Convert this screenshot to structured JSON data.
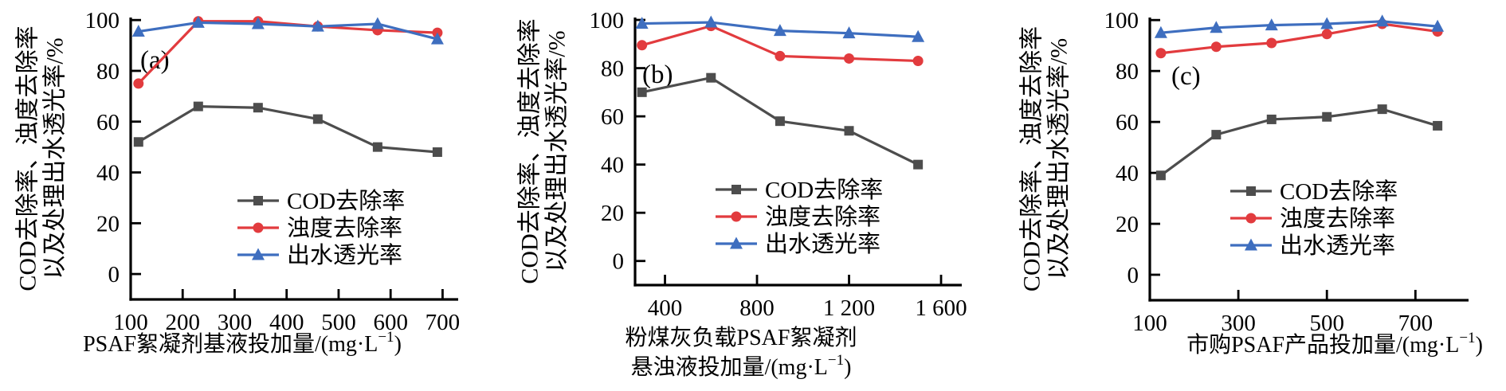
{
  "colors": {
    "cod": "#4d4d4d",
    "turbidity": "#e23b3e",
    "transmittance": "#3e6ebf",
    "axis": "#000000",
    "background": "#ffffff"
  },
  "y_axis": {
    "title_line1": "COD去除率、浊度去除率",
    "title_line2": "以及处理出水透光率/%",
    "tick_values": [
      0,
      20,
      40,
      60,
      80,
      100
    ],
    "tick_labels": [
      "0",
      "20",
      "40",
      "60",
      "80",
      "100"
    ],
    "min": -10,
    "max": 101
  },
  "legend_items": [
    {
      "key": "cod",
      "label": "COD去除率",
      "marker": "square"
    },
    {
      "key": "turbidity",
      "label": "浊度去除率",
      "marker": "circle"
    },
    {
      "key": "transmittance",
      "label": "出水透光率",
      "marker": "triangle"
    }
  ],
  "chart_data": [
    {
      "type": "line",
      "panel_label": "(a)",
      "x_title_lines": [
        "PSAF絮凝剂基液投加量/(mg·L⁻¹)"
      ],
      "x_min": 100,
      "x_max": 730,
      "x_ticks": [
        {
          "v": 100,
          "label": "100"
        },
        {
          "v": 200,
          "label": "200"
        },
        {
          "v": 300,
          "label": "300"
        },
        {
          "v": 400,
          "label": "400"
        },
        {
          "v": 500,
          "label": "500"
        },
        {
          "v": 600,
          "label": "600"
        },
        {
          "v": 700,
          "label": "700"
        }
      ],
      "x": [
        115,
        230,
        345,
        460,
        575,
        690
      ],
      "series": [
        {
          "key": "cod",
          "name": "COD去除率",
          "marker": "square",
          "values": [
            52,
            66,
            65.5,
            61,
            50,
            48
          ]
        },
        {
          "key": "turbidity",
          "name": "浊度去除率",
          "marker": "circle",
          "values": [
            75,
            99.5,
            99.5,
            97.5,
            96,
            95
          ]
        },
        {
          "key": "transmittance",
          "name": "出水透光率",
          "marker": "triangle",
          "values": [
            95.5,
            99,
            98.5,
            97.5,
            98.5,
            92.5
          ]
        }
      ]
    },
    {
      "type": "line",
      "panel_label": "(b)",
      "x_title_lines": [
        "粉煤灰负载PSAF絮凝剂",
        "悬浊液投加量/(mg·L⁻¹)"
      ],
      "x_min": 270,
      "x_max": 1690,
      "x_ticks": [
        {
          "v": 400,
          "label": "400"
        },
        {
          "v": 800,
          "label": "800"
        },
        {
          "v": 1200,
          "label": "1 200"
        },
        {
          "v": 1600,
          "label": "1 600"
        }
      ],
      "x": [
        300,
        600,
        900,
        1200,
        1500
      ],
      "series": [
        {
          "key": "cod",
          "name": "COD去除率",
          "marker": "square",
          "values": [
            70,
            76,
            58,
            54,
            40
          ]
        },
        {
          "key": "turbidity",
          "name": "浊度去除率",
          "marker": "circle",
          "values": [
            89.5,
            97.5,
            85,
            84,
            83
          ]
        },
        {
          "key": "transmittance",
          "name": "出水透光率",
          "marker": "triangle",
          "values": [
            98.5,
            99,
            95.5,
            94.5,
            93
          ]
        }
      ]
    },
    {
      "type": "line",
      "panel_label": "(c)",
      "x_title_lines": [
        "市购PSAF产品投加量/(mg·L⁻¹)"
      ],
      "x_min": 100,
      "x_max": 820,
      "x_ticks": [
        {
          "v": 100,
          "label": "100"
        },
        {
          "v": 300,
          "label": "300"
        },
        {
          "v": 500,
          "label": "500"
        },
        {
          "v": 700,
          "label": "700"
        }
      ],
      "x": [
        125,
        250,
        375,
        500,
        625,
        750
      ],
      "series": [
        {
          "key": "cod",
          "name": "COD去除率",
          "marker": "square",
          "values": [
            39,
            55,
            61,
            62,
            65,
            58.5
          ]
        },
        {
          "key": "turbidity",
          "name": "浊度去除率",
          "marker": "circle",
          "values": [
            87,
            89.5,
            91,
            94.5,
            98.5,
            95.5
          ]
        },
        {
          "key": "transmittance",
          "name": "出水透光率",
          "marker": "triangle",
          "values": [
            95,
            97,
            98,
            98.5,
            99.5,
            97.5
          ]
        }
      ]
    }
  ]
}
